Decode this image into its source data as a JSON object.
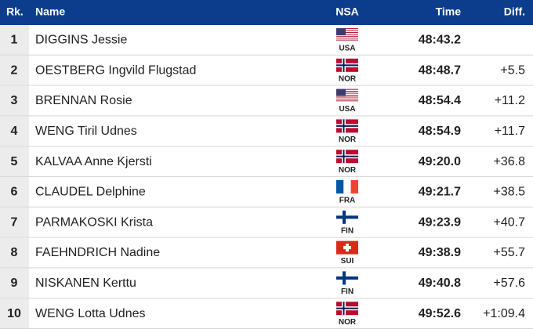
{
  "table": {
    "header": [
      "Rk.",
      "Name",
      "NSA",
      "Time",
      "Diff."
    ],
    "rows": [
      {
        "rank": 1,
        "name": "DIGGINS Jessie",
        "nsa": "USA",
        "time": "48:43.2"
      },
      {
        "rank": 2,
        "name": "OESTBERG Ingvild Flugstad",
        "nsa": "NOR",
        "time": "48:48.7",
        "diff": "+5.5"
      },
      {
        "rank": 3,
        "name": "BRENNAN Rosie",
        "nsa": "USA",
        "time": "48:54.4",
        "diff": "+11.2"
      },
      {
        "rank": 4,
        "name": "WENG Tiril Udnes",
        "nsa": "NOR",
        "time": "48:54.9",
        "diff": "+11.7"
      },
      {
        "rank": 5,
        "name": "KALVAA Anne Kjersti",
        "nsa": "NOR",
        "time": "49:20.0",
        "diff": "+36.8"
      },
      {
        "rank": 6,
        "name": "CLAUDEL Delphine",
        "nsa": "FRA",
        "time": "49:21.7",
        "diff": "+38.5"
      },
      {
        "rank": 7,
        "name": "PARMAKOSKI Krista",
        "nsa": "FIN",
        "time": "49:23.9",
        "diff": "+40.7"
      },
      {
        "rank": 8,
        "name": "FAEHNDRICH Nadine",
        "nsa": "SUI",
        "time": "49:38.9",
        "diff": "+55.7"
      },
      {
        "rank": 9,
        "name": "NISKANEN Kerttu",
        "nsa": "FIN",
        "time": "49:40.8",
        "diff": "+57.6"
      },
      {
        "rank": 10,
        "name": "WENG Lotta Udnes",
        "nsa": "NOR",
        "time": "49:52.6",
        "diff": "+1:09.4"
      }
    ]
  }
}
